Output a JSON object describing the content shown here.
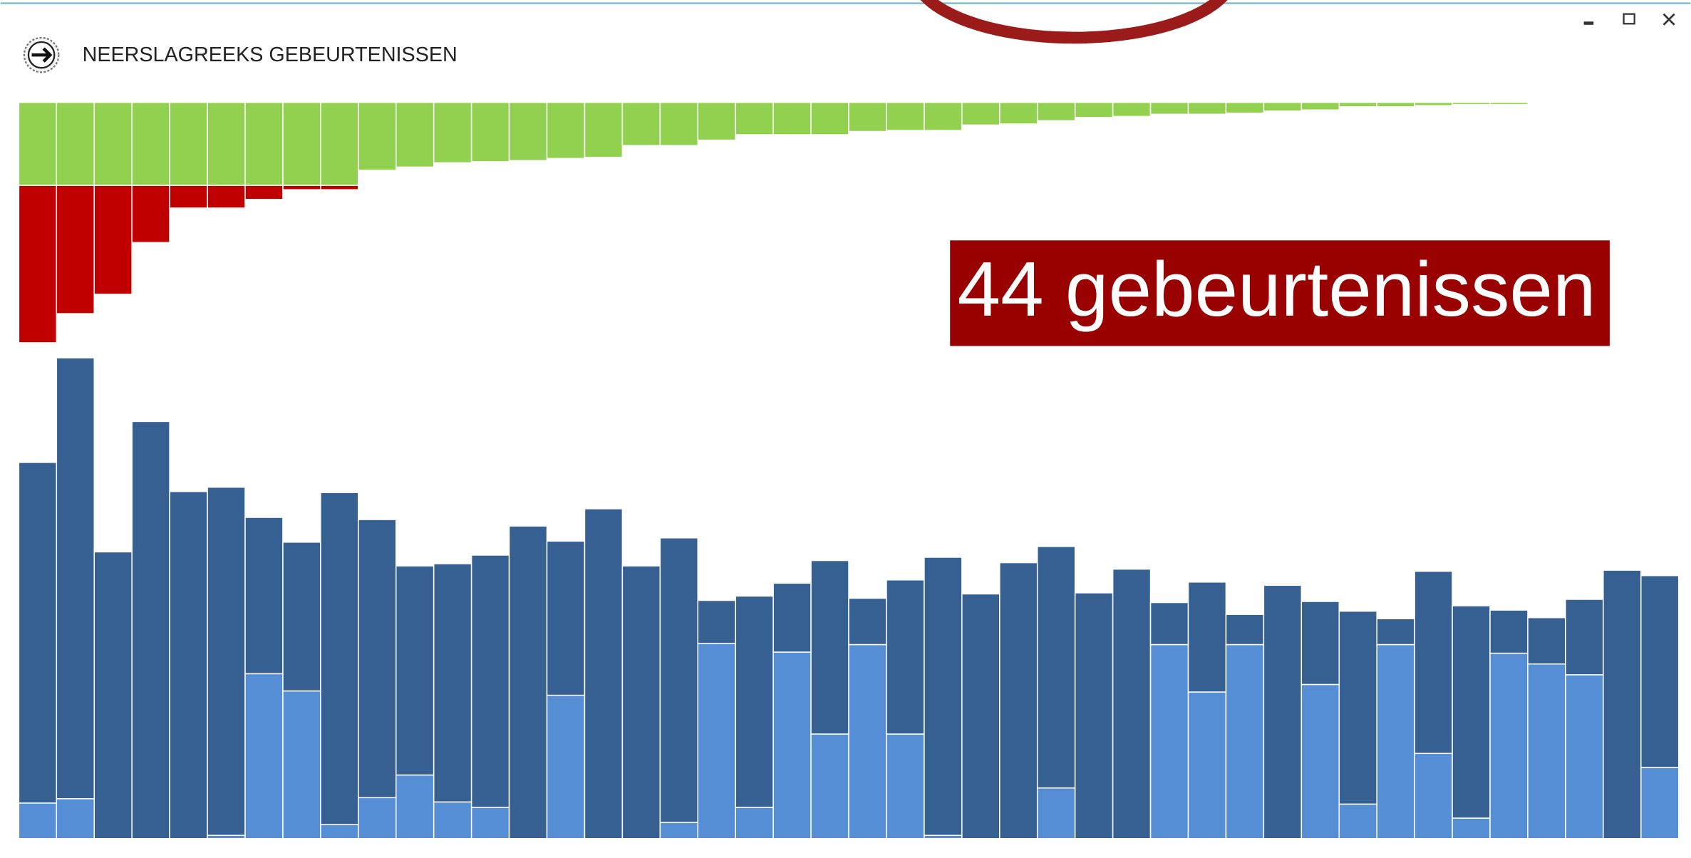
{
  "header": {
    "title": "NEERSLAGREEKS GEBEURTENISSEN"
  },
  "annotation": "44 gebeurtenissen",
  "chart_data": [
    {
      "type": "bar",
      "direction": "down",
      "stacked": true,
      "series": [
        {
          "color": "#92d050",
          "values": [
            77,
            77,
            77,
            77,
            77,
            77,
            77,
            77,
            77,
            63,
            60,
            56,
            55,
            54,
            52,
            51,
            40,
            40,
            35,
            30,
            30,
            30,
            27,
            26,
            26,
            21,
            20,
            17,
            14,
            13,
            11,
            11,
            10,
            8,
            7,
            4,
            4,
            3,
            2,
            2,
            1,
            1,
            1,
            0
          ]
        },
        {
          "color": "#c00000",
          "values": [
            146,
            119,
            101,
            53,
            21,
            21,
            13,
            4,
            4,
            0,
            0,
            0,
            0,
            0,
            0,
            0,
            0,
            0,
            0,
            0,
            0,
            0,
            0,
            0,
            0,
            0,
            0,
            0,
            0,
            0,
            0,
            0,
            0,
            0,
            0,
            0,
            0,
            0,
            0,
            0,
            0,
            0,
            0,
            0
          ]
        }
      ]
    },
    {
      "type": "bar",
      "direction": "up",
      "stacked": true,
      "series": [
        {
          "color": "#558ed5",
          "values": [
            33,
            37,
            0,
            0,
            0,
            3,
            153,
            137,
            13,
            38,
            59,
            34,
            29,
            0,
            133,
            0,
            0,
            15,
            181,
            29,
            173,
            97,
            180,
            97,
            3,
            0,
            0,
            47,
            0,
            0,
            180,
            136,
            180,
            0,
            143,
            32,
            180,
            79,
            19,
            172,
            162,
            152,
            0,
            66
          ]
        },
        {
          "color": "#376092",
          "values": [
            316,
            409,
            266,
            387,
            322,
            323,
            145,
            138,
            308,
            258,
            194,
            221,
            234,
            290,
            143,
            306,
            253,
            264,
            40,
            196,
            64,
            161,
            43,
            143,
            258,
            227,
            256,
            224,
            228,
            250,
            39,
            102,
            28,
            235,
            77,
            179,
            24,
            169,
            197,
            40,
            43,
            70,
            249,
            178
          ]
        }
      ]
    }
  ]
}
